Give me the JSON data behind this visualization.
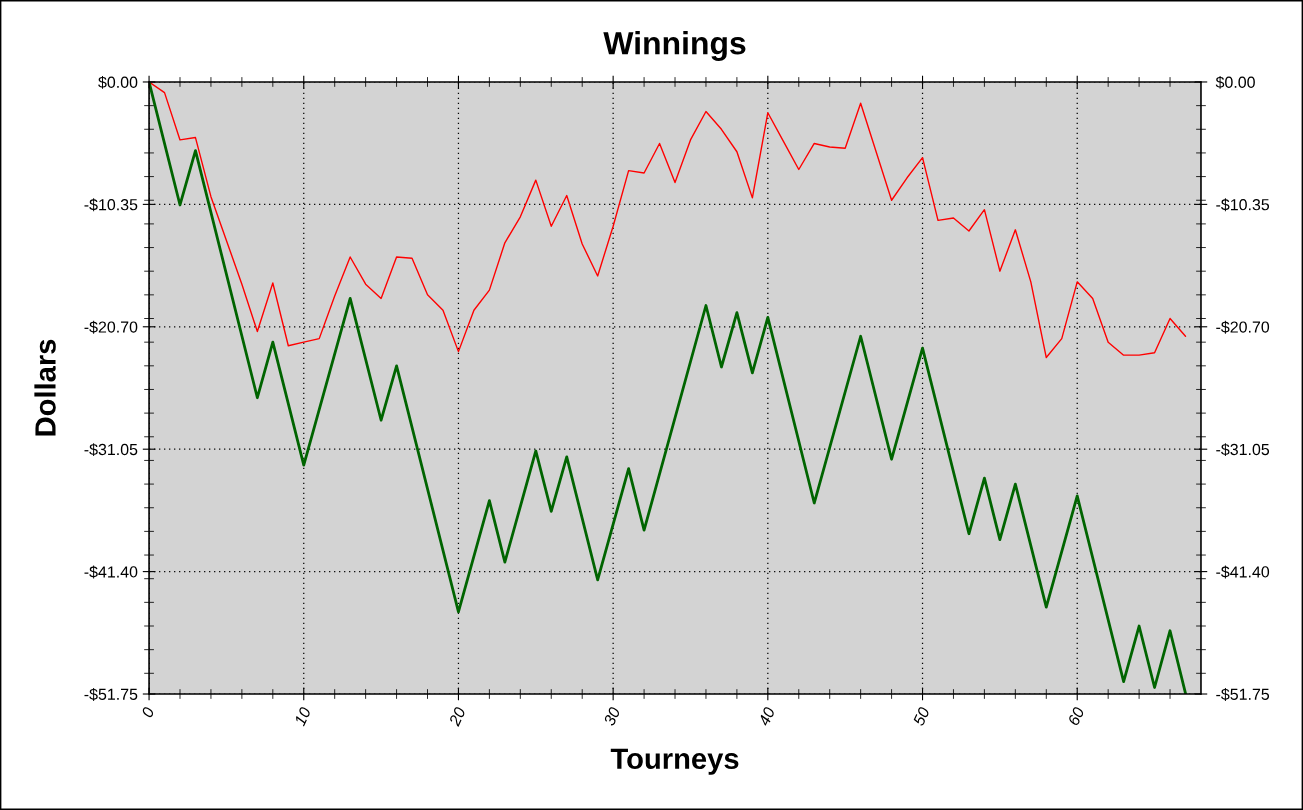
{
  "chart_data": {
    "type": "line",
    "title": "Winnings",
    "xlabel": "Tourneys",
    "ylabel": "Dollars",
    "xlim": [
      0,
      68
    ],
    "xticks": [
      0,
      {
        "value": 2,
        "label": null
      },
      {
        "value": 4,
        "label": null
      },
      {
        "value": 6,
        "label": null
      },
      {
        "value": 8,
        "label": null
      },
      10,
      {
        "value": 12,
        "label": null
      },
      {
        "value": 14,
        "label": null
      },
      {
        "value": 16,
        "label": null
      },
      {
        "value": 18,
        "label": null
      },
      20,
      {
        "value": 22,
        "label": null
      },
      {
        "value": 24,
        "label": null
      },
      {
        "value": 26,
        "label": null
      },
      {
        "value": 28,
        "label": null
      },
      30,
      {
        "value": 32,
        "label": null
      },
      {
        "value": 34,
        "label": null
      },
      {
        "value": 36,
        "label": null
      },
      {
        "value": 38,
        "label": null
      },
      40,
      {
        "value": 42,
        "label": null
      },
      {
        "value": 44,
        "label": null
      },
      {
        "value": 46,
        "label": null
      },
      {
        "value": 48,
        "label": null
      },
      50,
      {
        "value": 52,
        "label": null
      },
      {
        "value": 54,
        "label": null
      },
      {
        "value": 56,
        "label": null
      },
      {
        "value": 58,
        "label": null
      },
      60,
      {
        "value": 62,
        "label": null
      },
      {
        "value": 64,
        "label": null
      },
      {
        "value": 66,
        "label": null
      }
    ],
    "ylim": [
      -51.75,
      0
    ],
    "yticks": [
      {
        "value": 0,
        "label": "$0.00"
      },
      {
        "value": -10.35,
        "label": "-$10.35"
      },
      {
        "value": -20.7,
        "label": "-$20.70"
      },
      {
        "value": -31.05,
        "label": "-$31.05"
      },
      {
        "value": -41.4,
        "label": "-$41.40"
      },
      {
        "value": -51.75,
        "label": "-$51.75"
      },
      {
        "value": -2,
        "label": null
      },
      {
        "value": -4,
        "label": null
      },
      {
        "value": -6,
        "label": null
      },
      {
        "value": -8,
        "label": null
      },
      {
        "value": -10,
        "label": null
      },
      {
        "value": -12,
        "label": null
      },
      {
        "value": -14,
        "label": null
      },
      {
        "value": -16,
        "label": null
      },
      {
        "value": -18,
        "label": null
      },
      {
        "value": -20,
        "label": null
      },
      {
        "value": -22,
        "label": null
      },
      {
        "value": -24,
        "label": null
      },
      {
        "value": -26,
        "label": null
      },
      {
        "value": -28,
        "label": null
      },
      {
        "value": -30,
        "label": null
      },
      {
        "value": -32,
        "label": null
      },
      {
        "value": -34,
        "label": null
      },
      {
        "value": -36,
        "label": null
      },
      {
        "value": -38,
        "label": null
      },
      {
        "value": -40,
        "label": null
      },
      {
        "value": -42,
        "label": null
      },
      {
        "value": -44,
        "label": null
      },
      {
        "value": -46,
        "label": null
      },
      {
        "value": -48,
        "label": null
      },
      {
        "value": -50,
        "label": null
      }
    ],
    "y2lim": [
      -51.75,
      0
    ],
    "y2ticks": [
      {
        "value": 0,
        "label": "$0.00"
      },
      {
        "value": -10.35,
        "label": "-$10.35"
      },
      {
        "value": -20.7,
        "label": "-$20.70"
      },
      {
        "value": -31.05,
        "label": "-$31.05"
      },
      {
        "value": -41.4,
        "label": "-$41.40"
      },
      {
        "value": -51.75,
        "label": "-$51.75"
      },
      {
        "value": -2,
        "label": null
      },
      {
        "value": -4,
        "label": null
      },
      {
        "value": -6,
        "label": null
      },
      {
        "value": -8,
        "label": null
      },
      {
        "value": -10,
        "label": null
      },
      {
        "value": -12,
        "label": null
      },
      {
        "value": -14,
        "label": null
      },
      {
        "value": -16,
        "label": null
      },
      {
        "value": -18,
        "label": null
      },
      {
        "value": -20,
        "label": null
      },
      {
        "value": -22,
        "label": null
      },
      {
        "value": -24,
        "label": null
      },
      {
        "value": -26,
        "label": null
      },
      {
        "value": -28,
        "label": null
      },
      {
        "value": -30,
        "label": null
      },
      {
        "value": -32,
        "label": null
      },
      {
        "value": -34,
        "label": null
      },
      {
        "value": -36,
        "label": null
      },
      {
        "value": -38,
        "label": null
      },
      {
        "value": -40,
        "label": null
      },
      {
        "value": -42,
        "label": null
      },
      {
        "value": -44,
        "label": null
      },
      {
        "value": -46,
        "label": null
      },
      {
        "value": -48,
        "label": null
      },
      {
        "value": -50,
        "label": null
      }
    ],
    "grid": true,
    "marker": "none",
    "line_style": "solid",
    "series": [
      {
        "color": "#ff0000",
        "x": [
          0,
          1,
          2,
          3,
          4,
          5,
          6,
          7,
          8,
          9,
          10,
          11,
          12,
          13,
          14,
          15,
          16,
          17,
          18,
          19,
          20,
          21,
          22,
          23,
          24,
          25,
          26,
          27,
          28,
          29,
          30,
          31,
          32,
          33,
          34,
          35,
          36,
          37,
          38,
          39,
          40,
          41,
          42,
          43,
          44,
          45,
          46,
          47,
          48,
          49,
          50,
          51,
          52,
          53,
          54,
          55,
          56,
          57,
          58,
          59,
          60,
          61,
          62,
          63,
          64,
          65,
          66,
          67
        ],
        "values": [
          0,
          -0.9,
          -4.9,
          -4.7,
          -9.7,
          -13.4,
          -17.1,
          -21.1,
          -17.0,
          -22.3,
          -22.0,
          -21.7,
          -18.1,
          -14.8,
          -17.1,
          -18.3,
          -14.8,
          -14.9,
          -18.0,
          -19.3,
          -22.8,
          -19.3,
          -17.6,
          -13.6,
          -11.4,
          -8.3,
          -12.2,
          -9.6,
          -13.7,
          -16.4,
          -12.2,
          -7.5,
          -7.7,
          -5.2,
          -8.5,
          -4.9,
          -2.5,
          -4.0,
          -5.9,
          -9.8,
          -2.6,
          -5.0,
          -7.4,
          -5.2,
          -5.5,
          -5.6,
          -1.8,
          -5.9,
          -10.0,
          -8.1,
          -6.4,
          -11.7,
          -11.5,
          -12.6,
          -10.8,
          -16.0,
          -12.5,
          -16.9,
          -23.3,
          -21.7,
          -16.9,
          -18.3,
          -22.0,
          -23.1,
          -23.1,
          -22.9,
          -20.0,
          -21.5
        ]
      },
      {
        "color": "#006400",
        "x": [
          0,
          2,
          3,
          7,
          8,
          10,
          13,
          15,
          16,
          20,
          22,
          23,
          25,
          26,
          27,
          29,
          31,
          32,
          36,
          37,
          38,
          39,
          40,
          43,
          46,
          48,
          50,
          53,
          54,
          55,
          56,
          58,
          60,
          63,
          64,
          65,
          66,
          67
        ],
        "values": [
          0,
          -10.4,
          -5.8,
          -26.7,
          -22.0,
          -32.4,
          -18.3,
          -28.6,
          -24.0,
          -44.8,
          -35.4,
          -40.6,
          -31.2,
          -36.3,
          -31.7,
          -42.1,
          -32.7,
          -37.9,
          -18.9,
          -24.1,
          -19.5,
          -24.6,
          -19.9,
          -35.6,
          -21.5,
          -31.9,
          -22.5,
          -38.2,
          -33.5,
          -38.7,
          -34.0,
          -44.4,
          -35.0,
          -50.7,
          -46.0,
          -51.2,
          -46.4,
          -51.7
        ]
      }
    ]
  }
}
